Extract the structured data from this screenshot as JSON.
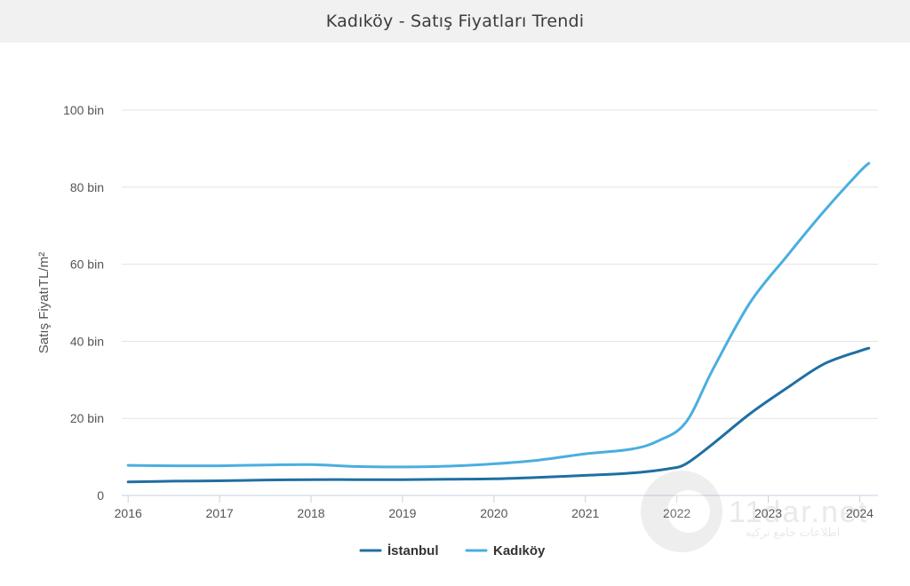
{
  "title": "Kadıköy - Satış Fiyatları Trendi",
  "chart_data": {
    "type": "line",
    "title": "Kadıköy - Satış Fiyatları Trendi",
    "ylabel": "Satış FiyatıTL/m²",
    "xlabel": "",
    "xlim": [
      2015.93,
      2024.2
    ],
    "ylim": [
      0,
      100000
    ],
    "x_ticks": [
      2016,
      2017,
      2018,
      2019,
      2020,
      2021,
      2022,
      2023,
      2024
    ],
    "x_tick_labels": [
      "2016",
      "2017",
      "2018",
      "2019",
      "2020",
      "2021",
      "2022",
      "2023",
      "2024"
    ],
    "y_ticks": [
      0,
      20000,
      40000,
      60000,
      80000,
      100000
    ],
    "y_tick_labels": [
      "0",
      "20 bin",
      "40 bin",
      "60 bin",
      "80 bin",
      "100 bin"
    ],
    "grid": true,
    "legend_position": "bottom-center",
    "series": [
      {
        "name": "İstanbul",
        "color": "#1f6fa3",
        "x": [
          2016,
          2016.5,
          2017,
          2017.5,
          2018,
          2018.5,
          2019,
          2019.5,
          2020,
          2020.5,
          2021,
          2021.5,
          2021.9,
          2022.1,
          2022.4,
          2022.8,
          2023.2,
          2023.6,
          2024,
          2024.1
        ],
        "y": [
          3500,
          3700,
          3800,
          4000,
          4100,
          4100,
          4100,
          4200,
          4300,
          4700,
          5200,
          5800,
          6900,
          8200,
          13500,
          21200,
          27800,
          34000,
          37500,
          38200
        ]
      },
      {
        "name": "Kadıköy",
        "color": "#4aaee0",
        "x": [
          2016,
          2016.5,
          2017,
          2017.5,
          2018,
          2018.5,
          2019,
          2019.5,
          2020,
          2020.5,
          2021,
          2021.5,
          2021.8,
          2022.1,
          2022.4,
          2022.8,
          2023.2,
          2023.6,
          2024,
          2024.1
        ],
        "y": [
          7800,
          7700,
          7700,
          7900,
          8000,
          7500,
          7400,
          7600,
          8200,
          9200,
          10800,
          12000,
          14200,
          19000,
          33000,
          50000,
          62000,
          73500,
          84000,
          86200
        ]
      }
    ]
  },
  "watermark": {
    "brand": "11dar.net",
    "tagline": "اطلاعات جامع ترکیه"
  }
}
